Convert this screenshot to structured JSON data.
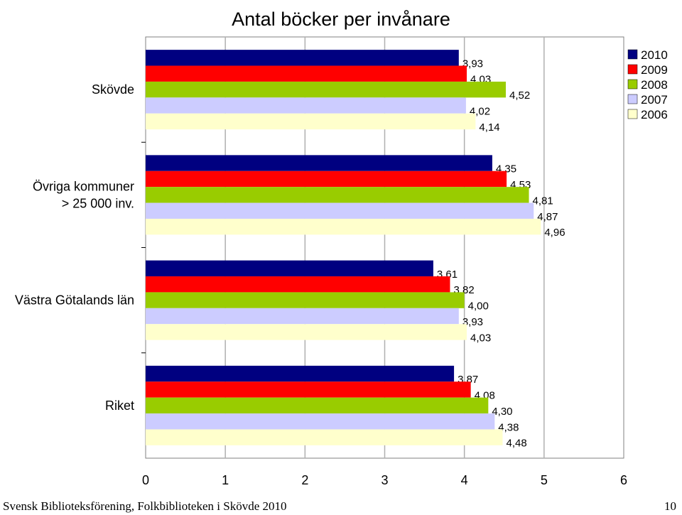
{
  "chart_data": {
    "type": "bar",
    "orientation": "horizontal",
    "title": "Antal böcker per invånare",
    "categories": [
      "Skövde",
      "Övriga kommuner > 25 000 inv.",
      "Västra Götalands län",
      "Riket"
    ],
    "category_lines": [
      [
        "Skövde"
      ],
      [
        "Övriga kommuner",
        "> 25 000 inv."
      ],
      [
        "Västra Götalands län"
      ],
      [
        "Riket"
      ]
    ],
    "series": [
      {
        "name": "2010",
        "color": "#000080",
        "values": [
          3.93,
          4.35,
          3.61,
          3.87
        ],
        "labels": [
          "3,93",
          "4,35",
          "3,61",
          "3,87"
        ]
      },
      {
        "name": "2009",
        "color": "#ff0000",
        "values": [
          4.03,
          4.53,
          3.82,
          4.08
        ],
        "labels": [
          "4,03",
          "4,53",
          "3,82",
          "4,08"
        ]
      },
      {
        "name": "2008",
        "color": "#99cc00",
        "values": [
          4.52,
          4.81,
          4.0,
          4.3
        ],
        "labels": [
          "4,52",
          "4,81",
          "4,00",
          "4,30"
        ]
      },
      {
        "name": "2007",
        "color": "#ccccff",
        "values": [
          4.02,
          4.87,
          3.93,
          4.38
        ],
        "labels": [
          "4,02",
          "4,87",
          "3,93",
          "4,38"
        ]
      },
      {
        "name": "2006",
        "color": "#ffffcc",
        "values": [
          4.14,
          4.96,
          4.03,
          4.48
        ],
        "labels": [
          "4,14",
          "4,96",
          "4,03",
          "4,48"
        ]
      }
    ],
    "xlim": [
      0,
      6
    ],
    "x_ticks": [
      "0",
      "1",
      "2",
      "3",
      "4",
      "5",
      "6"
    ],
    "grid": true,
    "legend_position": "top-right",
    "xlabel": "",
    "ylabel": ""
  },
  "footer": {
    "text": "Svensk Biblioteksförening, Folkbiblioteken i Skövde 2010",
    "page_number": "10"
  }
}
